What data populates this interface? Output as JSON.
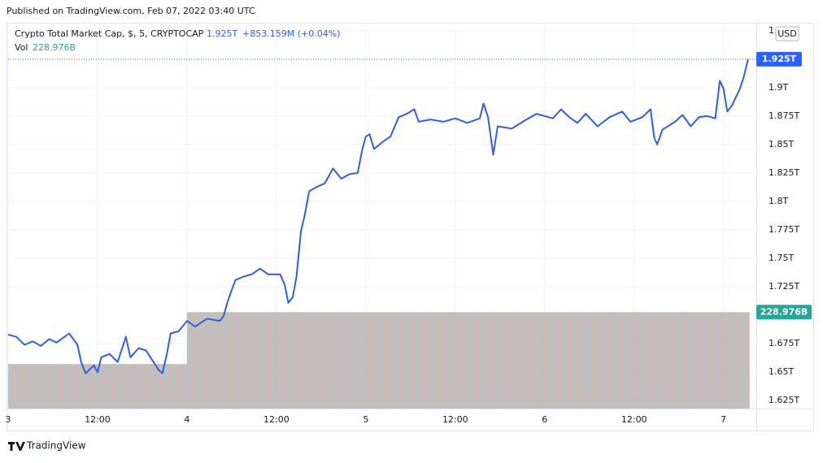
{
  "header": {
    "published": "Published on TradingView.com, Feb 07, 2022 03:40 UTC",
    "brand": "TradingView"
  },
  "chart_data": {
    "type": "line",
    "title": "Crypto Total Market Cap, $, 5, CRYPTOCAP",
    "last_label": "1.925T",
    "change": "+853.159M (+0.04%)",
    "currency": "USD",
    "series": [
      {
        "name": "Crypto Total Market Cap",
        "color": "#2f5fe3",
        "x": [
          0,
          1.1,
          2.2,
          3.3,
          4.4,
          5.5,
          6.5,
          8.2,
          9.3,
          9.8,
          10.4,
          11.5,
          12,
          12.5,
          13.6,
          14.7,
          15.8,
          16.4,
          17.5,
          18.5,
          19.1,
          20.2,
          20.7,
          21.3,
          21.8,
          22.9,
          24,
          25.1,
          26.7,
          28.4,
          28.9,
          29.5,
          30.5,
          31.6,
          32.7,
          33.8,
          34.9,
          36.5,
          37.1,
          37.6,
          38.2,
          38.7,
          39.3,
          39.8,
          40.4,
          41.5,
          42.5,
          43.6,
          44.7,
          45.8,
          46.9,
          47.5,
          48,
          48.5,
          49.1,
          50.2,
          51.3,
          52.4,
          53.5,
          54.5,
          55.1,
          56.7,
          58.4,
          60,
          61.6,
          63.3,
          63.8,
          64.4,
          65.1,
          65.7,
          67.6,
          69.3,
          70.9,
          73.1,
          74.2,
          75.3,
          76.4,
          77.5,
          79.1,
          80.7,
          82.4,
          83.5,
          85.1,
          86.2,
          86.7,
          87.1,
          87.8,
          89.5,
          90.5,
          91.6,
          92.7,
          93.8,
          94.9,
          95.5,
          96,
          96.5,
          97.1,
          98.2,
          98.7,
          99.3
        ],
        "values": [
          1.683,
          1.681,
          1.674,
          1.677,
          1.673,
          1.679,
          1.676,
          1.684,
          1.674,
          1.659,
          1.649,
          1.656,
          1.65,
          1.663,
          1.666,
          1.659,
          1.681,
          1.663,
          1.671,
          1.669,
          1.663,
          1.652,
          1.649,
          1.666,
          1.684,
          1.686,
          1.695,
          1.69,
          1.697,
          1.695,
          1.699,
          1.713,
          1.731,
          1.734,
          1.736,
          1.741,
          1.736,
          1.736,
          1.727,
          1.711,
          1.716,
          1.734,
          1.774,
          1.788,
          1.809,
          1.813,
          1.816,
          1.829,
          1.82,
          1.824,
          1.825,
          1.845,
          1.857,
          1.859,
          1.846,
          1.852,
          1.857,
          1.874,
          1.877,
          1.881,
          1.87,
          1.872,
          1.87,
          1.873,
          1.869,
          1.873,
          1.886,
          1.874,
          1.841,
          1.866,
          1.864,
          1.871,
          1.877,
          1.873,
          1.881,
          1.874,
          1.869,
          1.877,
          1.866,
          1.874,
          1.879,
          1.87,
          1.874,
          1.881,
          1.856,
          1.85,
          1.863,
          1.87,
          1.876,
          1.866,
          1.874,
          1.875,
          1.873,
          1.906,
          1.899,
          1.879,
          1.884,
          1.899,
          1.909,
          1.925
        ]
      }
    ],
    "volume": {
      "name": "Vol",
      "bins": [
        0,
        24,
        99.5
      ],
      "values": [
        105.8,
        228.976
      ],
      "last_label": "228.976B",
      "colors": [
        "#ef9a9a",
        "#80cbc4"
      ]
    },
    "xlim": [
      0,
      100.4
    ],
    "xticks": [
      {
        "value": 0,
        "label": "3"
      },
      {
        "value": 12,
        "label": "12:00"
      },
      {
        "value": 24,
        "label": "4"
      },
      {
        "value": 36,
        "label": "12:00"
      },
      {
        "value": 48,
        "label": "5"
      },
      {
        "value": 60,
        "label": "12:00"
      },
      {
        "value": 72,
        "label": "6"
      },
      {
        "value": 84,
        "label": "12:00"
      },
      {
        "value": 96,
        "label": "7"
      }
    ],
    "ylim": [
      1.618,
      1.957
    ],
    "yticks": [
      {
        "value": 1.625,
        "label": "1.625T"
      },
      {
        "value": 1.65,
        "label": "1.65T"
      },
      {
        "value": 1.675,
        "label": "1.675T"
      },
      {
        "value": 1.725,
        "label": "1.725T"
      },
      {
        "value": 1.75,
        "label": "1.75T"
      },
      {
        "value": 1.775,
        "label": "1.775T"
      },
      {
        "value": 1.8,
        "label": "1.8T"
      },
      {
        "value": 1.825,
        "label": "1.825T"
      },
      {
        "value": 1.85,
        "label": "1.85T"
      },
      {
        "value": 1.875,
        "label": "1.875T"
      },
      {
        "value": 1.9,
        "label": "1.9T"
      },
      {
        "value": 1.95,
        "label": "1."
      }
    ],
    "grid": true
  }
}
